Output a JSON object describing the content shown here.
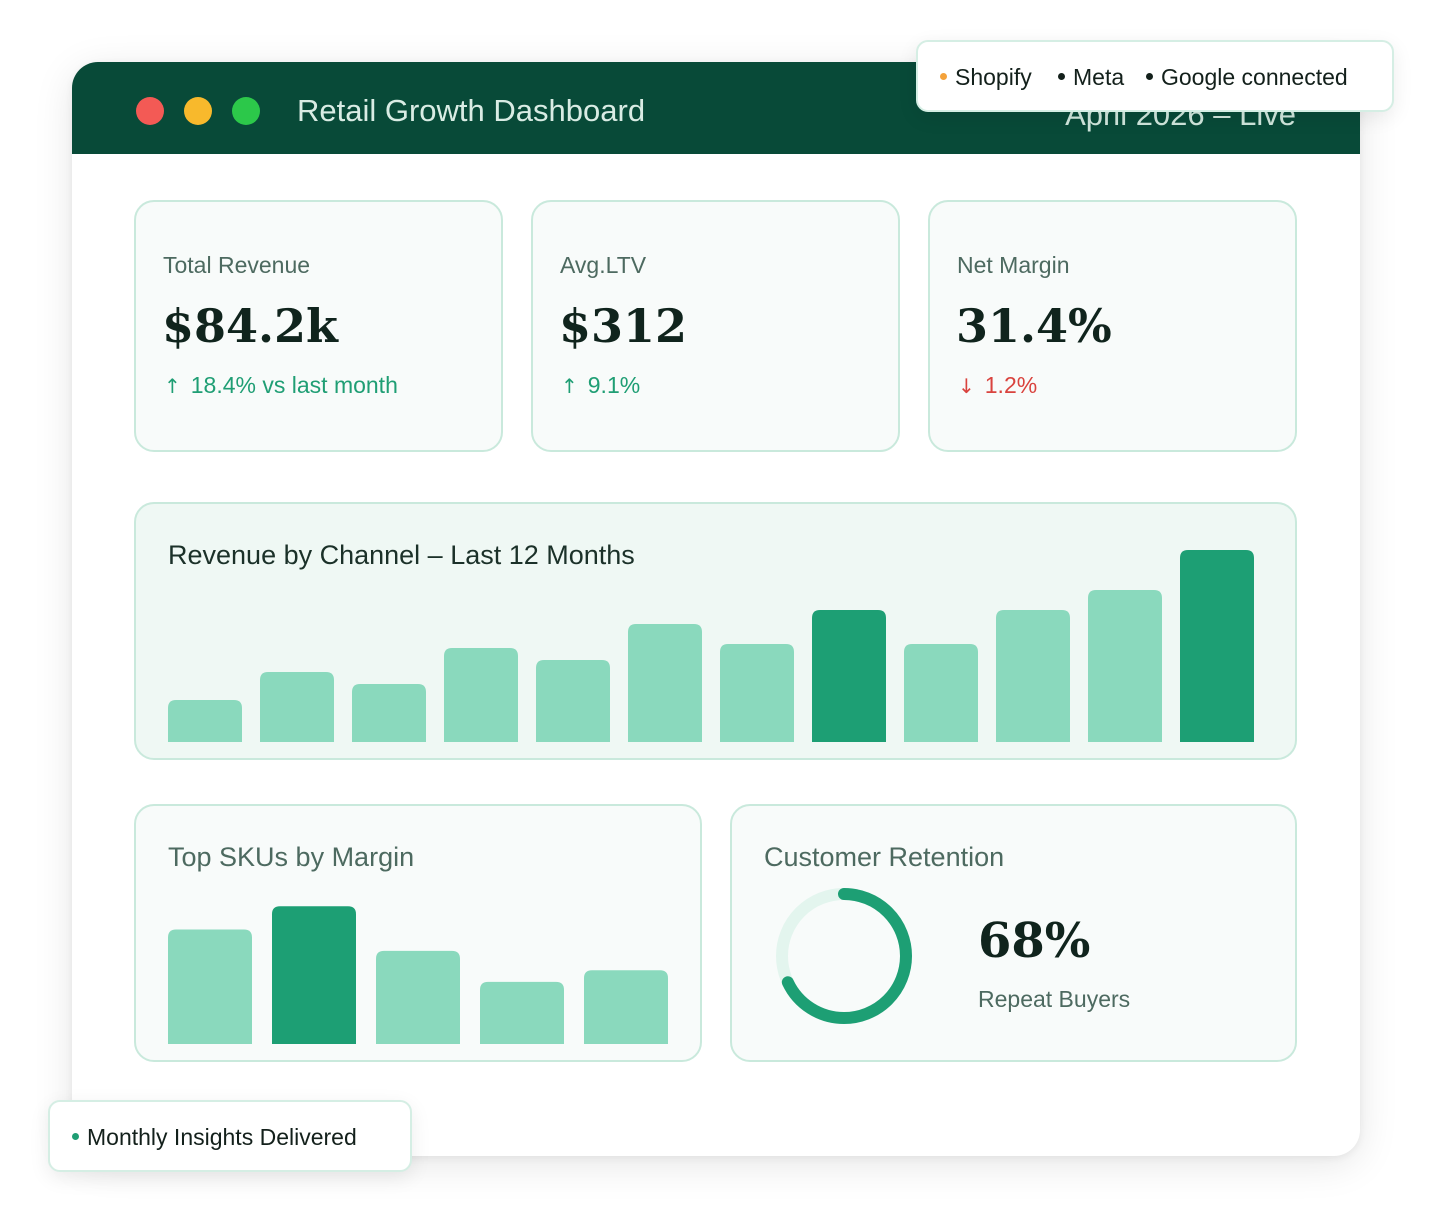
{
  "window": {
    "title": "Retail Growth Dashboard",
    "period": "April 2026 – Live"
  },
  "integrations": {
    "items": [
      {
        "label": "Shopify",
        "color": "#f4a23a"
      },
      {
        "label": "Meta",
        "color": "#13201b"
      },
      {
        "label": "Google connected",
        "color": "#13201b"
      }
    ]
  },
  "kpis": [
    {
      "label": "Total Revenue",
      "value": "$84.2k",
      "delta": "18.4% vs last month",
      "direction": "up",
      "arrow": "↑"
    },
    {
      "label": "Avg.LTV",
      "value": "$312",
      "delta": "9.1%",
      "direction": "up",
      "arrow": "↑"
    },
    {
      "label": "Net Margin",
      "value": "31.4%",
      "delta": "1.2%",
      "direction": "down",
      "arrow": "↓"
    }
  ],
  "revenue_chart": {
    "title": "Revenue by Channel – Last 12 Months"
  },
  "sku_chart": {
    "title": "Top SKUs by Margin"
  },
  "retention": {
    "title": "Customer Retention",
    "value": "68%",
    "label": "Repeat Buyers",
    "fraction": 0.68
  },
  "insights_badge": {
    "label": "Monthly Insights Delivered",
    "dot_color": "#1f9e74"
  },
  "colors": {
    "bar_light": "#8ad9bd",
    "bar_dark": "#1d9f74",
    "ring_track": "#e3f5ee",
    "ring_fill": "#1d9f74"
  },
  "chart_data": [
    {
      "type": "bar",
      "title": "Revenue by Channel – Last 12 Months",
      "values": [
        21,
        35,
        29,
        47,
        41,
        59,
        49,
        66,
        49,
        66,
        76,
        96
      ],
      "highlighted": [
        7,
        11
      ],
      "ylim": [
        0,
        100
      ],
      "grid": false
    },
    {
      "type": "bar",
      "title": "Top SKUs by Margin",
      "values": [
        59,
        71,
        48,
        32,
        38
      ],
      "highlighted": [
        1
      ],
      "ylim": [
        0,
        100
      ],
      "grid": false
    }
  ]
}
